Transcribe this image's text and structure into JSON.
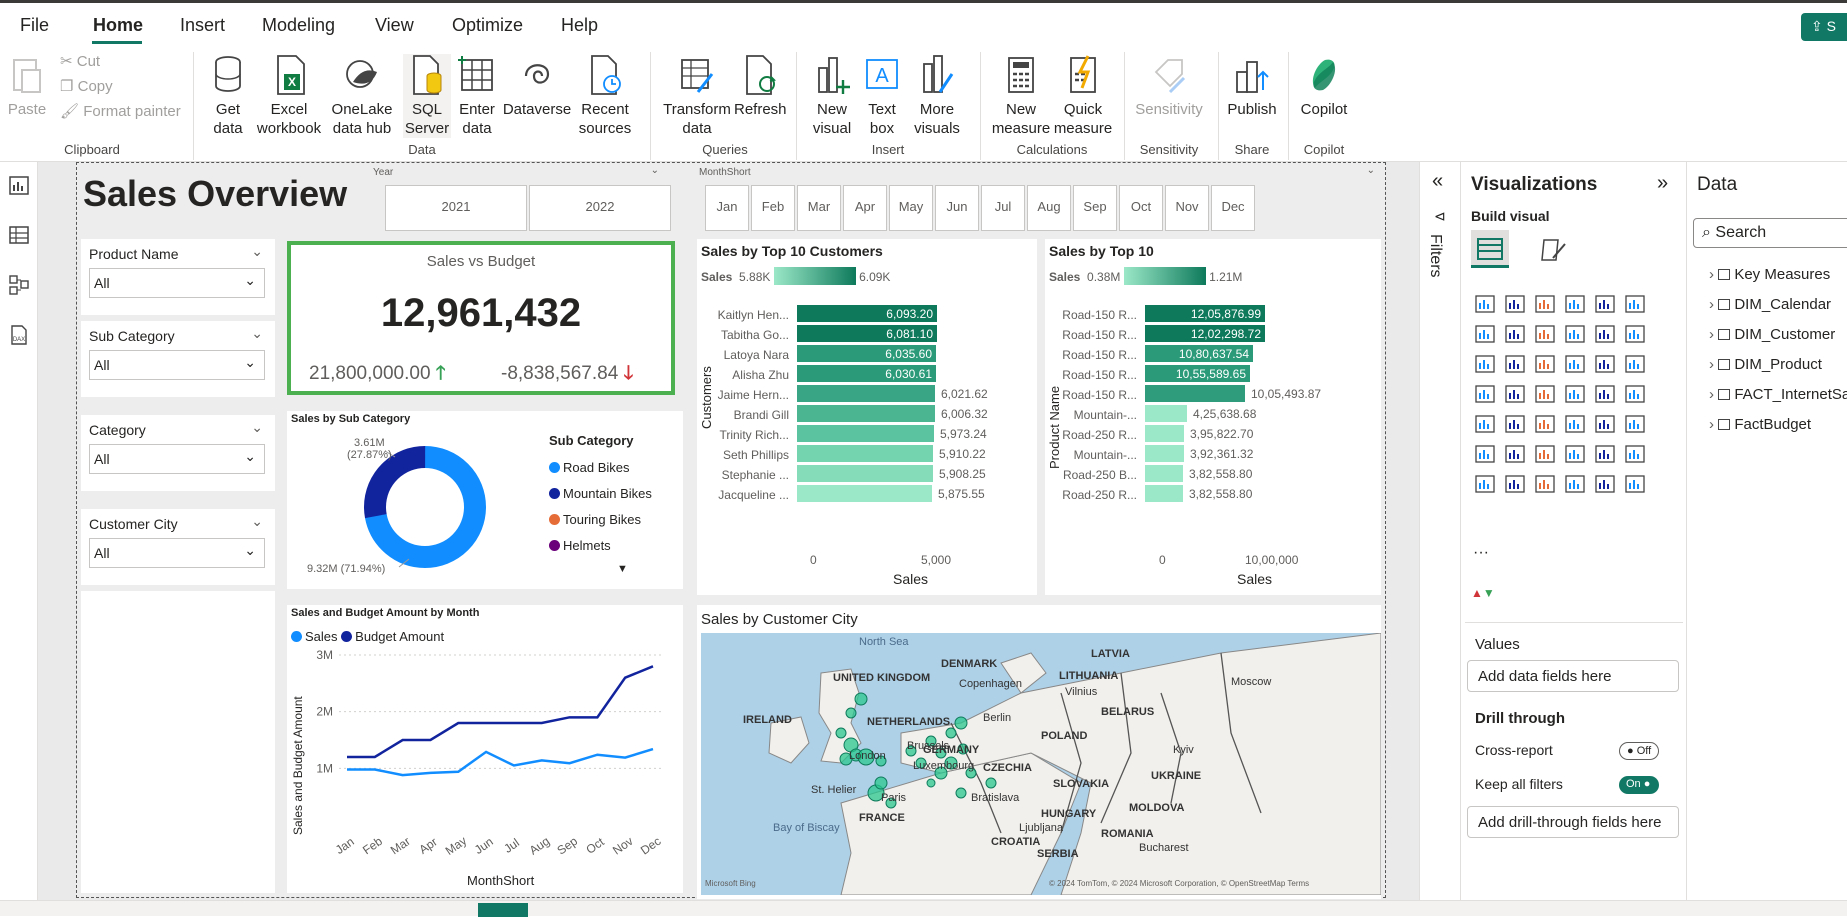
{
  "menu": {
    "items": [
      "File",
      "Home",
      "Insert",
      "Modeling",
      "View",
      "Optimize",
      "Help"
    ],
    "share_label": "S"
  },
  "ribbon": {
    "clipboard": {
      "paste": "Paste",
      "cut": "Cut",
      "copy": "Copy",
      "format_painter": "Format painter",
      "label": "Clipboard"
    },
    "data": {
      "get_data": "Get data",
      "excel": "Excel workbook",
      "onelake": "OneLake data hub",
      "sql": "SQL Server",
      "enter": "Enter data",
      "dataverse": "Dataverse",
      "recent": "Recent sources",
      "label": "Data"
    },
    "queries": {
      "transform": "Transform data",
      "refresh": "Refresh",
      "label": "Queries"
    },
    "insert": {
      "new_visual": "New visual",
      "text_box": "Text box",
      "more_visuals": "More visuals",
      "label": "Insert"
    },
    "calculations": {
      "new_measure": "New measure",
      "quick_measure": "Quick measure",
      "label": "Calculations"
    },
    "sensitivity": {
      "sensitivity": "Sensitivity",
      "label": "Sensitivity"
    },
    "share": {
      "publish": "Publish",
      "label": "Share"
    },
    "copilot": {
      "copilot": "Copilot",
      "label": "Copilot"
    }
  },
  "report": {
    "title": "Sales Overview",
    "year_slicer": {
      "header": "Year",
      "options": [
        "2021",
        "2022"
      ]
    },
    "month_slicer": {
      "header": "MonthShort",
      "options": [
        "Jan",
        "Feb",
        "Mar",
        "Apr",
        "May",
        "Jun",
        "Jul",
        "Aug",
        "Sep",
        "Oct",
        "Nov",
        "Dec"
      ]
    },
    "slicers": [
      {
        "label": "Product Name",
        "value": "All"
      },
      {
        "label": "Sub Category",
        "value": "All"
      },
      {
        "label": "Category",
        "value": "All"
      },
      {
        "label": "Customer City",
        "value": "All"
      }
    ],
    "kpi": {
      "title": "Sales vs Budget",
      "value": "12,961,432",
      "target": "21,800,000.00",
      "variance": "-8,838,567.84",
      "up_color": "#37a156",
      "down_color": "#d13438"
    },
    "donut": {
      "title": "Sales by Sub Category",
      "label_top": "3.61M",
      "label_top_pct": "(27.87%)",
      "label_bottom": "9.32M (71.94%)",
      "legend_title": "Sub Category",
      "legend": [
        {
          "name": "Road Bikes",
          "color": "#118dff"
        },
        {
          "name": "Mountain Bikes",
          "color": "#12239e"
        },
        {
          "name": "Touring Bikes",
          "color": "#e66c37"
        },
        {
          "name": "Helmets",
          "color": "#6b007b"
        }
      ]
    },
    "customers_chart": {
      "title": "Sales by Top 10 Customers",
      "legend_label": "Sales",
      "legend_min": "5.88K",
      "legend_max": "6.09K",
      "y_title": "Customers",
      "x_title": "Sales",
      "x_ticks": [
        "0",
        "5,000"
      ]
    },
    "products_chart": {
      "title": "Sales by Top 10",
      "legend_label": "Sales",
      "legend_min": "0.38M",
      "legend_max": "1.21M",
      "y_title": "Product Name",
      "x_title": "Sales",
      "x_ticks": [
        "0",
        "10,00,000"
      ]
    },
    "line_chart": {
      "title": "Sales and Budget Amount by Month",
      "y_title": "Sales and Budget Amount",
      "x_title": "MonthShort",
      "y_ticks": [
        "1M",
        "2M",
        "3M"
      ]
    },
    "map": {
      "title": "Sales by Customer City",
      "labels": [
        {
          "t": "North Sea"
        },
        {
          "t": "DENMARK"
        },
        {
          "t": "LATVIA"
        },
        {
          "t": "LITHUANIA"
        },
        {
          "t": "Moscow"
        },
        {
          "t": "UNITED KINGDOM"
        },
        {
          "t": "IRELAND"
        },
        {
          "t": "Copenhagen"
        },
        {
          "t": "Vilnius"
        },
        {
          "t": "BELARUS"
        },
        {
          "t": "NETHERLANDS"
        },
        {
          "t": "Berlin"
        },
        {
          "t": "POLAND"
        },
        {
          "t": "Brussels"
        },
        {
          "t": "GERMANY"
        },
        {
          "t": "London"
        },
        {
          "t": "Luxembourg"
        },
        {
          "t": "Kyiv"
        },
        {
          "t": "CZECHIA"
        },
        {
          "t": "UKRAINE"
        },
        {
          "t": "SLOVAKIA"
        },
        {
          "t": "St. Helier"
        },
        {
          "t": "Paris"
        },
        {
          "t": "Bratislava"
        },
        {
          "t": "FRANCE"
        },
        {
          "t": "HUNGARY"
        },
        {
          "t": "MOLDOVA"
        },
        {
          "t": "Ljubljana"
        },
        {
          "t": "ROMANIA"
        },
        {
          "t": "Bay of Biscay"
        },
        {
          "t": "CROATIA"
        },
        {
          "t": "Bucharest"
        },
        {
          "t": "SERBIA"
        }
      ],
      "attribution": "© 2024 TomTom, © 2024 Microsoft Corporation, © OpenStreetMap  Terms",
      "bing": "Microsoft Bing"
    }
  },
  "chart_data": [
    {
      "type": "bar",
      "title": "Sales by Top 10 Customers",
      "categories": [
        "Kaitlyn Hen...",
        "Tabitha Go...",
        "Latoya Nara",
        "Alisha Zhu",
        "Jaime Hern...",
        "Brandi Gill",
        "Trinity Rich...",
        "Seth Phillips",
        "Stephanie ...",
        "Jacqueline ..."
      ],
      "values": [
        6093.2,
        6081.1,
        6035.6,
        6030.61,
        6021.62,
        6006.32,
        5973.24,
        5910.22,
        5908.25,
        5875.55
      ],
      "value_labels": [
        "6,093.20",
        "6,081.10",
        "6,035.60",
        "6,030.61",
        "6,021.62",
        "6,006.32",
        "5,973.24",
        "5,910.22",
        "5,908.25",
        "5,875.55"
      ],
      "xlabel": "Sales",
      "ylabel": "Customers",
      "xlim": [
        0,
        6500
      ],
      "colors": [
        "#0e7a5b",
        "#0e7a5b",
        "#2a9a78",
        "#2a9a78",
        "#3aa584",
        "#4bb592",
        "#5bc39f",
        "#75d4b0",
        "#84dcb9",
        "#9be8c8"
      ]
    },
    {
      "type": "bar",
      "title": "Sales by Top 10",
      "categories": [
        "Road-150 R...",
        "Road-150 R...",
        "Road-150 R...",
        "Road-150 R...",
        "Road-150 R...",
        "Mountain-...",
        "Road-250 R...",
        "Mountain-...",
        "Road-250 B...",
        "Road-250 R..."
      ],
      "values": [
        1205876.99,
        1202298.72,
        1080637.54,
        1055589.65,
        1005493.87,
        425638.68,
        395822.7,
        392361.32,
        382558.8,
        382558.8
      ],
      "value_labels": [
        "12,05,876.99",
        "12,02,298.72",
        "10,80,637.54",
        "10,55,589.65",
        "10,05,493.87",
        "4,25,638.68",
        "3,95,822.70",
        "3,92,361.32",
        "3,82,558.80",
        "3,82,558.80"
      ],
      "xlabel": "Sales",
      "ylabel": "Product Name",
      "xlim": [
        0,
        1400000
      ],
      "colors": [
        "#0e7a5b",
        "#0e7a5b",
        "#2a9a78",
        "#2a9a78",
        "#2f9d7b",
        "#9be8c8",
        "#9be8c8",
        "#9be8c8",
        "#9be8c8",
        "#9be8c8"
      ]
    },
    {
      "type": "line",
      "title": "Sales and Budget Amount by Month",
      "categories": [
        "Jan",
        "Feb",
        "Mar",
        "Apr",
        "May",
        "Jun",
        "Jul",
        "Aug",
        "Sep",
        "Oct",
        "Nov",
        "Dec"
      ],
      "series": [
        {
          "name": "Sales",
          "values": [
            980000,
            980000,
            880000,
            920000,
            940000,
            1290000,
            1050000,
            1140000,
            1090000,
            1240000,
            1190000,
            1340000
          ],
          "color": "#118dff"
        },
        {
          "name": "Budget Amount",
          "values": [
            1200000,
            1200000,
            1500000,
            1500000,
            1800000,
            1800000,
            1800000,
            1800000,
            1900000,
            1900000,
            2600000,
            2800000
          ],
          "color": "#12239e"
        }
      ],
      "xlabel": "MonthShort",
      "ylabel": "Sales and Budget Amount",
      "ylim": [
        0,
        3000000
      ]
    },
    {
      "type": "pie",
      "title": "Sales by Sub Category",
      "categories": [
        "Road Bikes",
        "Mountain Bikes",
        "Touring Bikes",
        "Helmets"
      ],
      "values": [
        9.32,
        3.61,
        0,
        0
      ]
    }
  ]
}
